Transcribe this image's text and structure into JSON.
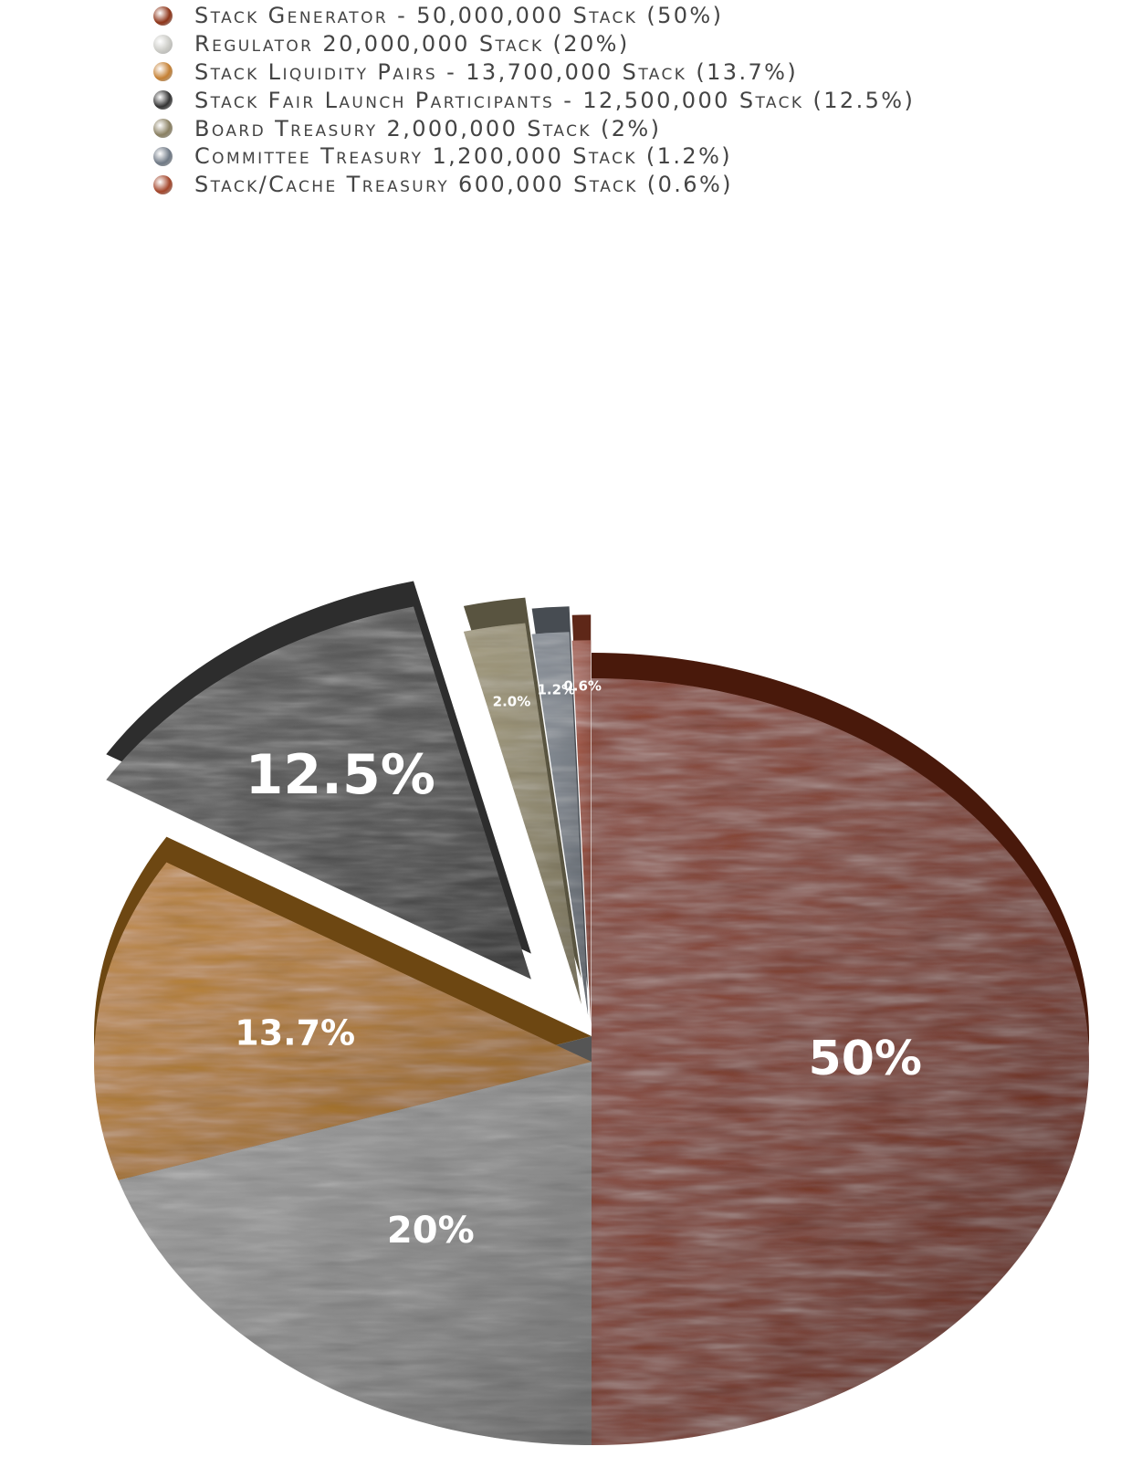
{
  "chart_data": {
    "type": "pie",
    "series": [
      {
        "name": "Stack Generator",
        "value": 50,
        "legend": "Stack Generator - 50,000,000 Stack (50%)",
        "slice_label": "50%",
        "color": "#7a2a12",
        "swatch": "#8e3418"
      },
      {
        "name": "Regulator",
        "value": 20,
        "legend": "Regulator 20,000,000 Stack (20%)",
        "slice_label": "20%",
        "color": "#8d8d8d",
        "swatch": "#cbcbc6"
      },
      {
        "name": "Stack Liquidity Pairs",
        "value": 13.7,
        "legend": "Stack Liquidity Pairs - 13,700,000 Stack (13.7%)",
        "slice_label": "13.7%",
        "color": "#b5771e",
        "swatch": "#c58033"
      },
      {
        "name": "Stack Fair Launch Participants",
        "value": 12.5,
        "legend": "Stack Fair Launch Participants - 12,500,000 Stack (12.5%)",
        "slice_label": "12.5%",
        "color": "#4b4b4b",
        "swatch": "#333333"
      },
      {
        "name": "Board Treasury",
        "value": 2,
        "legend": "Board Treasury 2,000,000 Stack (2%)",
        "slice_label": "2.0%",
        "color": "#958c6b",
        "swatch": "#8a8062"
      },
      {
        "name": "Committee Treasury",
        "value": 1.2,
        "legend": "Committee Treasury 1,200,000 Stack (1.2%)",
        "slice_label": "1.2%",
        "color": "#767e88",
        "swatch": "#6f7985"
      },
      {
        "name": "Stack/Cache Treasury",
        "value": 0.6,
        "legend": "Stack/Cache Treasury 600,000 Stack (0.6%)",
        "slice_label": "0.6%",
        "color": "#9c4128",
        "swatch": "#a3452a"
      }
    ]
  }
}
